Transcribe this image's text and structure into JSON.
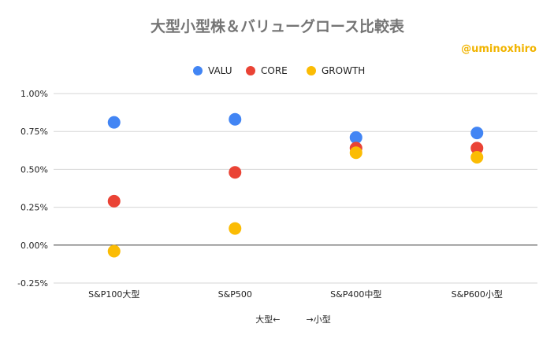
{
  "chart_data": {
    "type": "scatter",
    "title": "大型小型株＆バリューグロース比較表",
    "watermark": "@uminoxhiro",
    "xlabel": "大型←　　　→小型",
    "ylabel": "",
    "categories": [
      "S&P100大型",
      "S&P500",
      "S&P400中型",
      "S&P600小型"
    ],
    "ylim": [
      -0.25,
      1.0
    ],
    "yticks": [
      1.0,
      0.75,
      0.5,
      0.25,
      0.0,
      -0.25
    ],
    "ytick_labels": [
      "1.00%",
      "0.75%",
      "0.50%",
      "0.25%",
      "0.00%",
      "-0.25%"
    ],
    "legend_position": "top-center",
    "grid": true,
    "series": [
      {
        "name": "VALU",
        "color": "#4285f4",
        "values": [
          0.81,
          0.83,
          0.71,
          0.74
        ]
      },
      {
        "name": "CORE",
        "color": "#ea4335",
        "values": [
          0.29,
          0.48,
          0.64,
          0.64
        ]
      },
      {
        "name": "GROWTH",
        "color": "#fbbc04",
        "values": [
          -0.04,
          0.11,
          0.61,
          0.58
        ]
      }
    ]
  }
}
